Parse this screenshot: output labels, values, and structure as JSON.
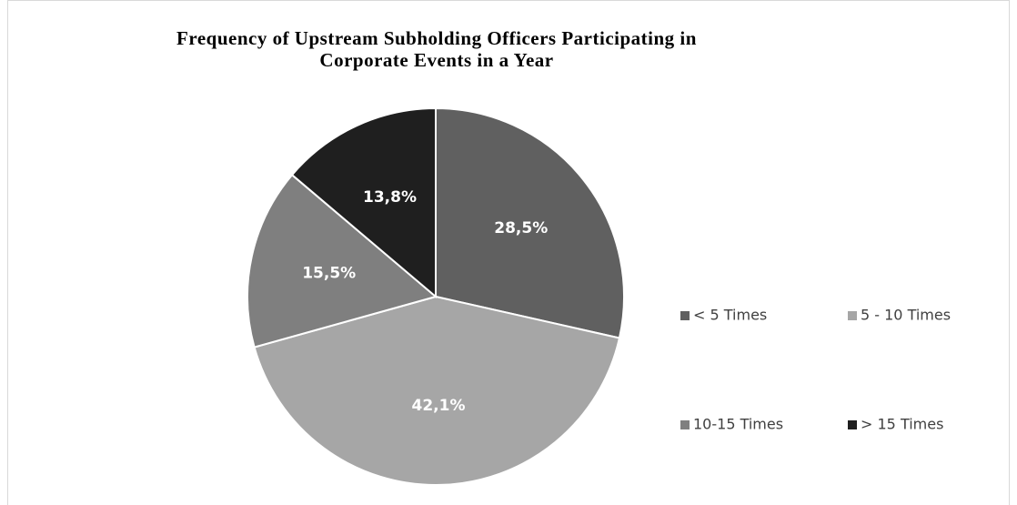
{
  "chart_data": {
    "type": "pie",
    "title": "Frequency of Upstream Subholding Officers Participating in Corporate Events in a Year",
    "categories": [
      "< 5 Times",
      "5 - 10 Times",
      "10-15 Times",
      "> 15 Times"
    ],
    "values": [
      28.5,
      42.1,
      15.5,
      13.8
    ],
    "value_labels": [
      "28,5%",
      "42,1%",
      "15,5%",
      "13,8%"
    ],
    "colors": [
      "#606060",
      "#a6a6a6",
      "#7f7f7f",
      "#1f1f1f"
    ],
    "legend": "right"
  }
}
